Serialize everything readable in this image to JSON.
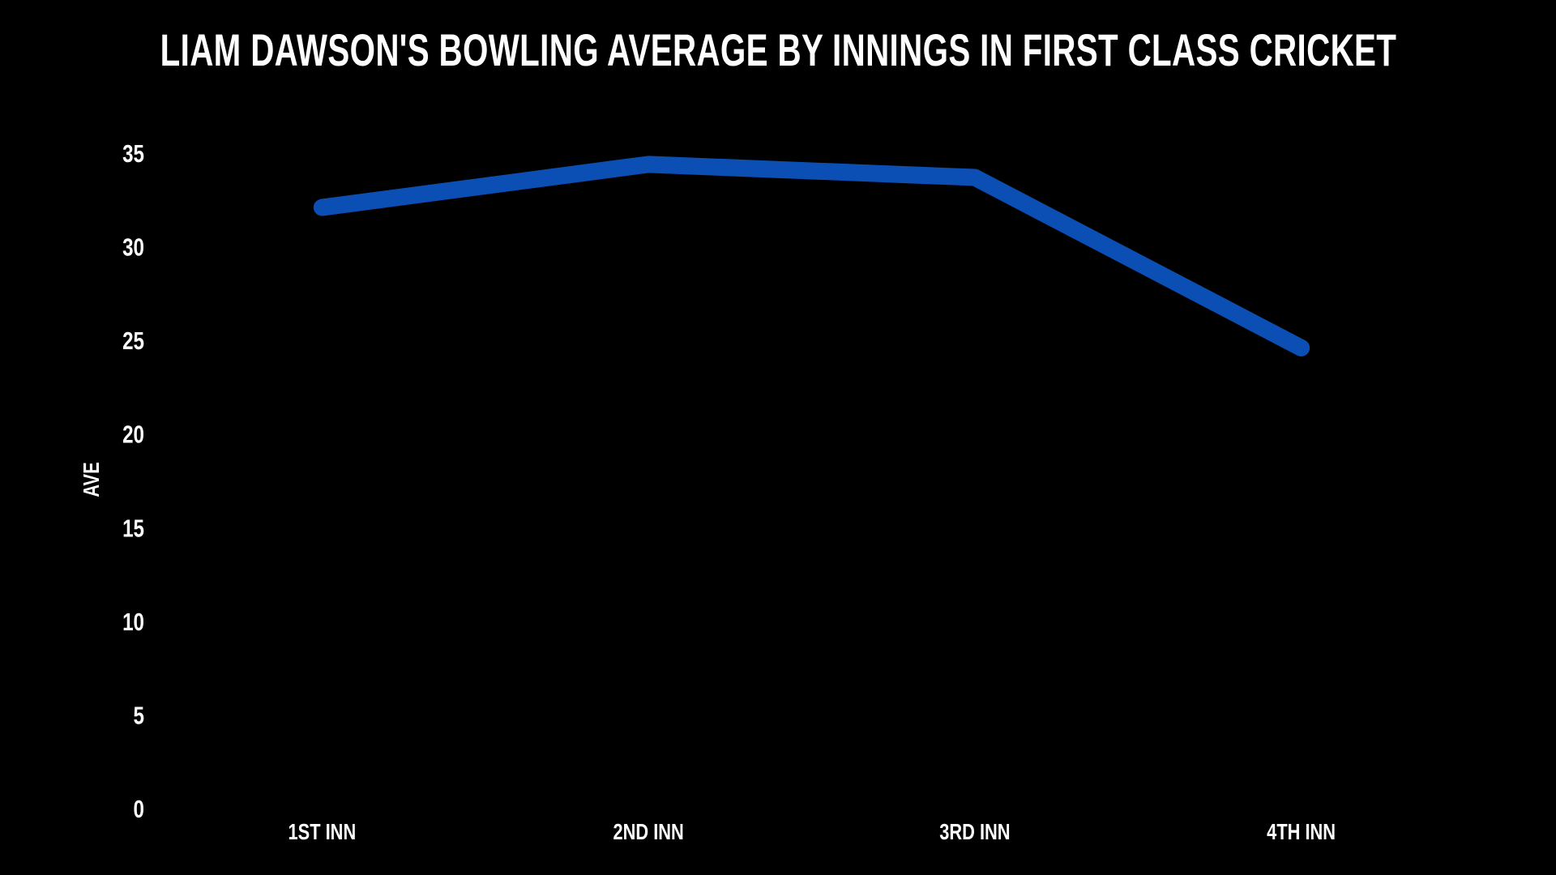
{
  "chart_data": {
    "type": "line",
    "title": "LIAM DAWSON'S BOWLING AVERAGE BY INNINGS IN FIRST CLASS CRICKET",
    "ylabel": "AVE",
    "xlabel": "",
    "categories": [
      "1ST INN",
      "2ND INN",
      "3RD INN",
      "4TH INN"
    ],
    "values": [
      32.1,
      34.4,
      33.7,
      24.6
    ],
    "ylim": [
      0,
      35
    ],
    "yticks": [
      0,
      5,
      10,
      15,
      20,
      25,
      30,
      35
    ],
    "grid": false,
    "legend": false,
    "line_color": "#0b4fb4",
    "background_color": "#000000",
    "text_color": "#ffffff"
  }
}
